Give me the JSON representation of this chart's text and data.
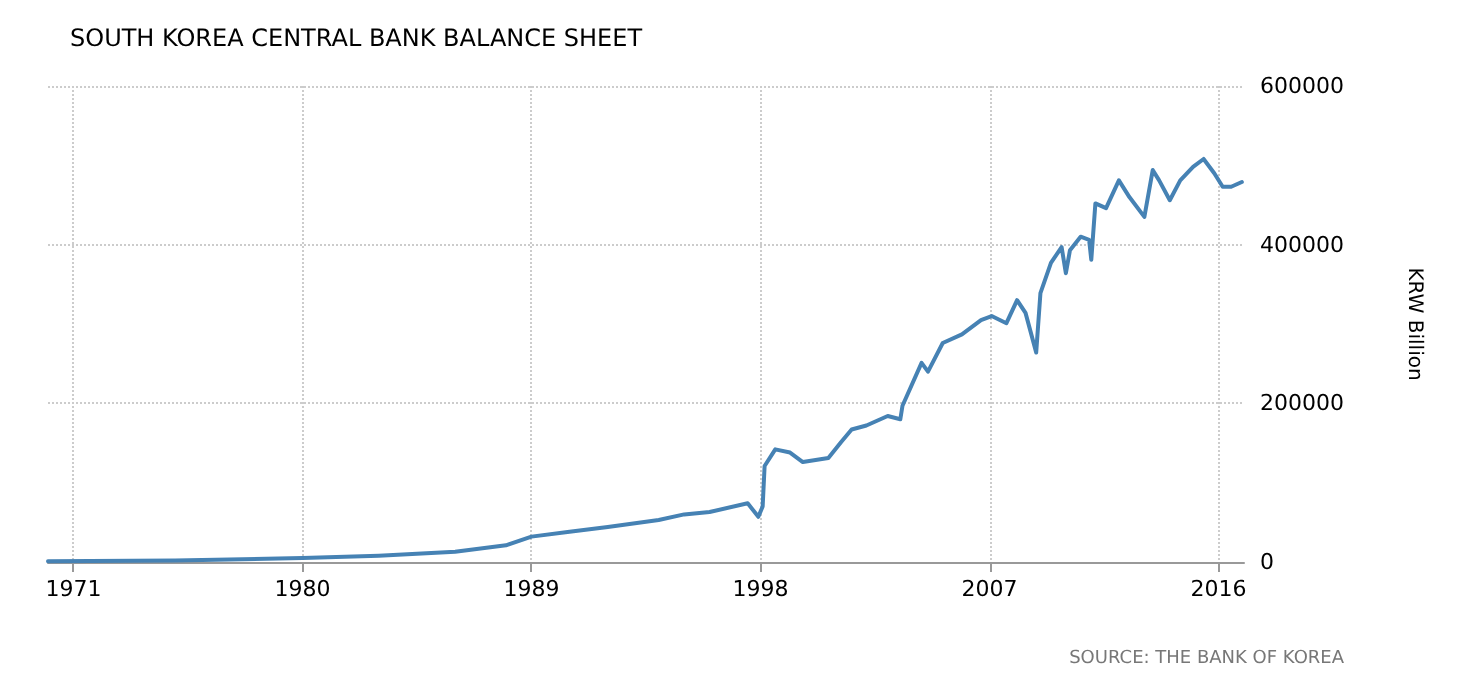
{
  "chart_data": {
    "type": "line",
    "title": "SOUTH KOREA CENTRAL BANK BALANCE SHEET",
    "ylabel": "KRW Billion",
    "annotations": [
      "SOURCE: THE BANK OF KOREA"
    ],
    "x": [
      "1970-01",
      "1975-01",
      "1980-01",
      "1983-01",
      "1986-01",
      "1988-01",
      "1989-01",
      "1990-07",
      "1992-01",
      "1994-01",
      "1995-01",
      "1996-01",
      "1997-07",
      "1997-12",
      "1998-02",
      "1998-03",
      "1998-08",
      "1999-03",
      "1999-09",
      "2000-09",
      "2001-03",
      "2001-08",
      "2002-03",
      "2003-01",
      "2003-07",
      "2003-08",
      "2004-05",
      "2004-08",
      "2005-03",
      "2005-12",
      "2006-09",
      "2007-02",
      "2007-09",
      "2008-02",
      "2008-06",
      "2008-11",
      "2009-01",
      "2009-06",
      "2009-11",
      "2010-01",
      "2010-03",
      "2010-08",
      "2010-12",
      "2011-01",
      "2011-03",
      "2011-08",
      "2012-02",
      "2012-07",
      "2013-02",
      "2013-06",
      "2013-09",
      "2014-02",
      "2014-07",
      "2015-01",
      "2015-06",
      "2015-11",
      "2016-03",
      "2016-07",
      "2016-12"
    ],
    "series": [
      {
        "color": "#4682b4",
        "values": [
          1000,
          2000,
          5000,
          8000,
          13000,
          21000,
          32000,
          38000,
          44000,
          53000,
          60000,
          63000,
          74000,
          57000,
          70000,
          121000,
          142000,
          138000,
          126000,
          131000,
          151000,
          167000,
          172000,
          184000,
          180000,
          197000,
          251000,
          240000,
          276000,
          287000,
          305000,
          310000,
          301000,
          330000,
          314000,
          264000,
          339000,
          377000,
          397000,
          364000,
          393000,
          410000,
          406000,
          381000,
          452000,
          446000,
          481000,
          460000,
          435000,
          494000,
          481000,
          456000,
          481000,
          498000,
          508000,
          490000,
          473000,
          473000,
          479000
        ]
      }
    ],
    "xlim": [
      "1970-01",
      "2017-01"
    ],
    "xticks": [
      "1971",
      "1980",
      "1989",
      "1998",
      "2007",
      "2016"
    ],
    "ylim": [
      0,
      600000
    ],
    "yticks": [
      0,
      200000,
      400000,
      600000
    ],
    "grid": true,
    "marker": "none",
    "line_style": "solid"
  }
}
